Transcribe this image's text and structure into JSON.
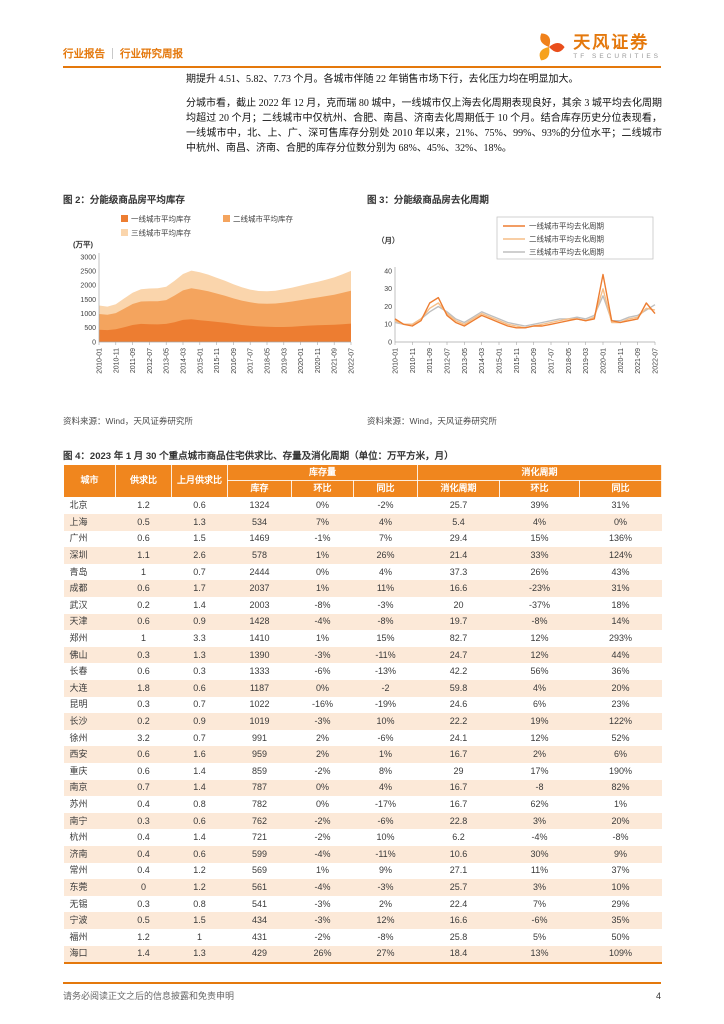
{
  "header": {
    "left_primary": "行业报告",
    "left_secondary": "行业研究周报",
    "brand_name": "天风证券",
    "brand_sub": "TF SECURITIES"
  },
  "paragraphs": {
    "p1": "期提升 4.51、5.82、7.73 个月。各城市伴随 22 年销售市场下行，去化压力均在明显加大。",
    "p2": "分城市看，截止 2022 年 12 月，克而瑞 80 城中，一线城市仅上海去化周期表现良好，其余 3 城平均去化周期均超过 20 个月；二线城市中仅杭州、合肥、南昌、济南去化周期低于 10 个月。结合库存历史分位表现看，一线城市中，北、上、广、深可售库存分别处 2010 年以来，21%、75%、99%、93%的分位水平；二线城市中杭州、南昌、济南、合肥的库存分位数分别为 68%、45%、32%、18%。"
  },
  "figure2": {
    "title": "图 2：分能级商品房平均库存",
    "source": "资料来源：Wind，天风证券研究所"
  },
  "figure3": {
    "title": "图 3：分能级商品房去化周期",
    "source": "资料来源：Wind，天风证券研究所"
  },
  "figure4": {
    "title": "图 4：2023 年 1 月 30 个重点城市商品住宅供求比、存量及消化周期（单位：万平方米，月）"
  },
  "chart_data": [
    {
      "type": "area",
      "stacked": true,
      "title": "分能级商品房平均库存",
      "ylabel": "(万平)",
      "ylim": [
        0,
        3000
      ],
      "yticks": [
        0,
        500,
        1000,
        1500,
        2000,
        2500,
        3000
      ],
      "grid": false,
      "legend_position": "top",
      "x_tick_labels": [
        "2010-01",
        "2010-11",
        "2011-09",
        "2012-07",
        "2013-05",
        "2014-03",
        "2015-01",
        "2015-11",
        "2016-09",
        "2017-07",
        "2018-05",
        "2019-03",
        "2020-01",
        "2020-11",
        "2021-09",
        "2022-07"
      ],
      "series": [
        {
          "name": "一线城市平均库存",
          "color": "#ED7D31",
          "values": [
            430,
            420,
            450,
            520,
            600,
            640,
            630,
            620,
            640,
            700,
            780,
            800,
            770,
            740,
            710,
            680,
            640,
            600,
            570,
            550,
            540,
            530,
            530,
            540,
            560,
            580,
            590,
            600,
            610,
            630,
            650
          ]
        },
        {
          "name": "二线城市平均库存",
          "color": "#F4A45E",
          "values": [
            560,
            540,
            570,
            660,
            740,
            790,
            810,
            820,
            840,
            940,
            1040,
            1100,
            1080,
            1050,
            1000,
            950,
            900,
            860,
            830,
            810,
            810,
            830,
            860,
            890,
            920,
            950,
            980,
            1020,
            1060,
            1110,
            1160
          ]
        },
        {
          "name": "三线城市平均库存",
          "color": "#FAD5AC",
          "values": [
            300,
            290,
            310,
            360,
            400,
            430,
            450,
            460,
            470,
            520,
            580,
            620,
            610,
            590,
            560,
            530,
            500,
            470,
            450,
            440,
            440,
            450,
            470,
            490,
            510,
            530,
            550,
            580,
            610,
            650,
            700
          ]
        }
      ]
    },
    {
      "type": "line",
      "title": "分能级商品房去化周期",
      "ylabel": "（月）",
      "ylim": [
        0,
        40
      ],
      "yticks": [
        0,
        10,
        20,
        30,
        40
      ],
      "grid": false,
      "legend_position": "top-right-box",
      "x_tick_labels": [
        "2010-01",
        "2010-11",
        "2011-09",
        "2012-07",
        "2013-05",
        "2014-03",
        "2015-01",
        "2015-11",
        "2016-09",
        "2017-07",
        "2018-05",
        "2019-03",
        "2020-01",
        "2020-11",
        "2021-09",
        "2022-07"
      ],
      "series": [
        {
          "name": "一线城市平均去化周期",
          "color": "#ED7D31",
          "values": [
            13,
            10,
            9,
            12,
            22,
            25,
            15,
            11,
            9,
            12,
            15,
            13,
            11,
            9,
            8,
            8,
            9,
            9,
            10,
            11,
            12,
            13,
            12,
            13,
            38,
            12,
            11,
            12,
            13,
            22,
            16
          ]
        },
        {
          "name": "二线城市平均去化周期",
          "color": "#F6BE87",
          "values": [
            12,
            10,
            10,
            13,
            19,
            22,
            16,
            12,
            10,
            13,
            16,
            14,
            12,
            10,
            9,
            8,
            9,
            10,
            11,
            12,
            13,
            13,
            12,
            14,
            30,
            11,
            11,
            13,
            14,
            19,
            18
          ]
        },
        {
          "name": "三线城市平均去化周期",
          "color": "#BFBFBF",
          "values": [
            11,
            10,
            10,
            13,
            17,
            20,
            17,
            13,
            11,
            14,
            17,
            15,
            13,
            11,
            10,
            9,
            10,
            11,
            12,
            13,
            13,
            14,
            13,
            15,
            26,
            12,
            12,
            14,
            15,
            18,
            21
          ]
        }
      ]
    }
  ],
  "table": {
    "col_city": "城市",
    "col_ratio": "供求比",
    "col_prev_ratio": "上月供求比",
    "group_inventory": "库存量",
    "group_digestion": "消化周期",
    "sub_inventory": "库存",
    "sub_mom1": "环比",
    "sub_yoy1": "同比",
    "sub_period": "消化周期",
    "sub_mom2": "环比",
    "sub_yoy2": "同比",
    "rows": [
      [
        "北京",
        "1.2",
        "0.6",
        "1324",
        "0%",
        "-2%",
        "25.7",
        "39%",
        "31%"
      ],
      [
        "上海",
        "0.5",
        "1.3",
        "534",
        "7%",
        "4%",
        "5.4",
        "4%",
        "0%"
      ],
      [
        "广州",
        "0.6",
        "1.5",
        "1469",
        "-1%",
        "7%",
        "29.4",
        "15%",
        "136%"
      ],
      [
        "深圳",
        "1.1",
        "2.6",
        "578",
        "1%",
        "26%",
        "21.4",
        "33%",
        "124%"
      ],
      [
        "青岛",
        "1",
        "0.7",
        "2444",
        "0%",
        "4%",
        "37.3",
        "26%",
        "43%"
      ],
      [
        "成都",
        "0.6",
        "1.7",
        "2037",
        "1%",
        "11%",
        "16.6",
        "-23%",
        "31%"
      ],
      [
        "武汉",
        "0.2",
        "1.4",
        "2003",
        "-8%",
        "-3%",
        "20",
        "-37%",
        "18%"
      ],
      [
        "天津",
        "0.6",
        "0.9",
        "1428",
        "-4%",
        "-8%",
        "19.7",
        "-8%",
        "14%"
      ],
      [
        "郑州",
        "1",
        "3.3",
        "1410",
        "1%",
        "15%",
        "82.7",
        "12%",
        "293%"
      ],
      [
        "佛山",
        "0.3",
        "1.3",
        "1390",
        "-3%",
        "-11%",
        "24.7",
        "12%",
        "44%"
      ],
      [
        "长春",
        "0.6",
        "0.3",
        "1333",
        "-6%",
        "-13%",
        "42.2",
        "56%",
        "36%"
      ],
      [
        "大连",
        "1.8",
        "0.6",
        "1187",
        "0%",
        "-2",
        "59.8",
        "4%",
        "20%"
      ],
      [
        "昆明",
        "0.3",
        "0.7",
        "1022",
        "-16%",
        "-19%",
        "24.6",
        "6%",
        "23%"
      ],
      [
        "长沙",
        "0.2",
        "0.9",
        "1019",
        "-3%",
        "10%",
        "22.2",
        "19%",
        "122%"
      ],
      [
        "徐州",
        "3.2",
        "0.7",
        "991",
        "2%",
        "-6%",
        "24.1",
        "12%",
        "52%"
      ],
      [
        "西安",
        "0.6",
        "1.6",
        "959",
        "2%",
        "1%",
        "16.7",
        "2%",
        "6%"
      ],
      [
        "重庆",
        "0.6",
        "1.4",
        "859",
        "-2%",
        "8%",
        "29",
        "17%",
        "190%"
      ],
      [
        "南京",
        "0.7",
        "1.4",
        "787",
        "0%",
        "4%",
        "16.7",
        "-8",
        "82%"
      ],
      [
        "苏州",
        "0.4",
        "0.8",
        "782",
        "0%",
        "-17%",
        "16.7",
        "62%",
        "1%"
      ],
      [
        "南宁",
        "0.3",
        "0.6",
        "762",
        "-2%",
        "-6%",
        "22.8",
        "3%",
        "20%"
      ],
      [
        "杭州",
        "0.4",
        "1.4",
        "721",
        "-2%",
        "10%",
        "6.2",
        "-4%",
        "-8%"
      ],
      [
        "济南",
        "0.4",
        "0.6",
        "599",
        "-4%",
        "-11%",
        "10.6",
        "30%",
        "9%"
      ],
      [
        "常州",
        "0.4",
        "1.2",
        "569",
        "1%",
        "9%",
        "27.1",
        "11%",
        "37%"
      ],
      [
        "东莞",
        "0",
        "1.2",
        "561",
        "-4%",
        "-3%",
        "25.7",
        "3%",
        "10%"
      ],
      [
        "无锡",
        "0.3",
        "0.8",
        "541",
        "-3%",
        "2%",
        "22.4",
        "7%",
        "29%"
      ],
      [
        "宁波",
        "0.5",
        "1.5",
        "434",
        "-3%",
        "12%",
        "16.6",
        "-6%",
        "35%"
      ],
      [
        "福州",
        "1.2",
        "1",
        "431",
        "-2%",
        "-8%",
        "25.8",
        "5%",
        "50%"
      ],
      [
        "海口",
        "1.4",
        "1.3",
        "429",
        "26%",
        "27%",
        "18.4",
        "13%",
        "109%"
      ]
    ]
  },
  "footer": {
    "disclaimer": "请务必阅读正文之后的信息披露和免责申明",
    "page": "4"
  },
  "colors": {
    "accent_orange": "#E4780C",
    "table_header": "#F0861E",
    "table_row_alt": "#FCE9D8",
    "axis_gray": "#A6A6A6"
  }
}
